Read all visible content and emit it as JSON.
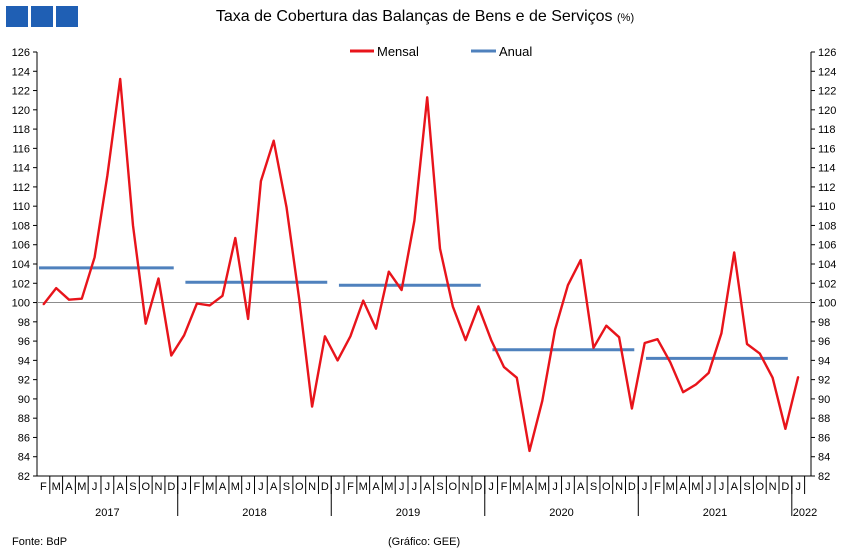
{
  "header": {
    "title": "Taxa de Cobertura das Balanças de Bens e de Serviços",
    "unit": "(%)"
  },
  "footer": {
    "source": "Fonte: BdP",
    "credit": "(Gráfico: GEE)"
  },
  "chart_data": {
    "type": "line",
    "title": "Taxa de Cobertura das Balanças de Bens e de Serviços (%)",
    "ylim": [
      82,
      126
    ],
    "ytick_step": 2,
    "legend_position": "top-center",
    "reference_line": 100,
    "years": [
      {
        "label": "2017",
        "months": [
          "F",
          "M",
          "A",
          "M",
          "J",
          "J",
          "A",
          "S",
          "O",
          "N",
          "D"
        ]
      },
      {
        "label": "2018",
        "months": [
          "J",
          "F",
          "M",
          "A",
          "M",
          "J",
          "J",
          "A",
          "S",
          "O",
          "N",
          "D"
        ]
      },
      {
        "label": "2019",
        "months": [
          "J",
          "F",
          "M",
          "A",
          "M",
          "J",
          "J",
          "A",
          "S",
          "O",
          "N",
          "D"
        ]
      },
      {
        "label": "2020",
        "months": [
          "J",
          "F",
          "M",
          "A",
          "M",
          "J",
          "J",
          "A",
          "S",
          "O",
          "N",
          "D"
        ]
      },
      {
        "label": "2021",
        "months": [
          "J",
          "F",
          "M",
          "A",
          "M",
          "J",
          "J",
          "A",
          "S",
          "O",
          "N",
          "D"
        ]
      },
      {
        "label": "2022",
        "months": [
          "J"
        ]
      }
    ],
    "series": [
      {
        "name": "Mensal",
        "color": "#e8141b",
        "values": [
          99.8,
          101.5,
          100.3,
          100.4,
          104.7,
          113.2,
          123.2,
          108.0,
          97.8,
          102.5,
          94.5,
          96.6,
          99.9,
          99.7,
          100.7,
          106.7,
          98.3,
          112.6,
          116.8,
          109.9,
          100.3,
          89.2,
          96.5,
          94.0,
          96.5,
          100.2,
          97.3,
          103.2,
          101.3,
          108.5,
          121.3,
          105.6,
          99.6,
          96.1,
          99.6,
          96.1,
          93.3,
          92.2,
          84.6,
          89.8,
          97.2,
          101.8,
          104.4,
          95.3,
          97.6,
          96.4,
          89.0,
          95.8,
          96.2,
          93.8,
          90.7,
          91.5,
          92.7,
          96.8,
          105.2,
          95.7,
          94.7,
          92.2,
          86.9,
          92.3
        ]
      },
      {
        "name": "Anual",
        "color": "#4f81bd",
        "segments": [
          {
            "year": "2017",
            "value": 103.6
          },
          {
            "year": "2018",
            "value": 102.1
          },
          {
            "year": "2019",
            "value": 101.8
          },
          {
            "year": "2020",
            "value": 95.1
          },
          {
            "year": "2021",
            "value": 94.2
          }
        ]
      }
    ]
  }
}
